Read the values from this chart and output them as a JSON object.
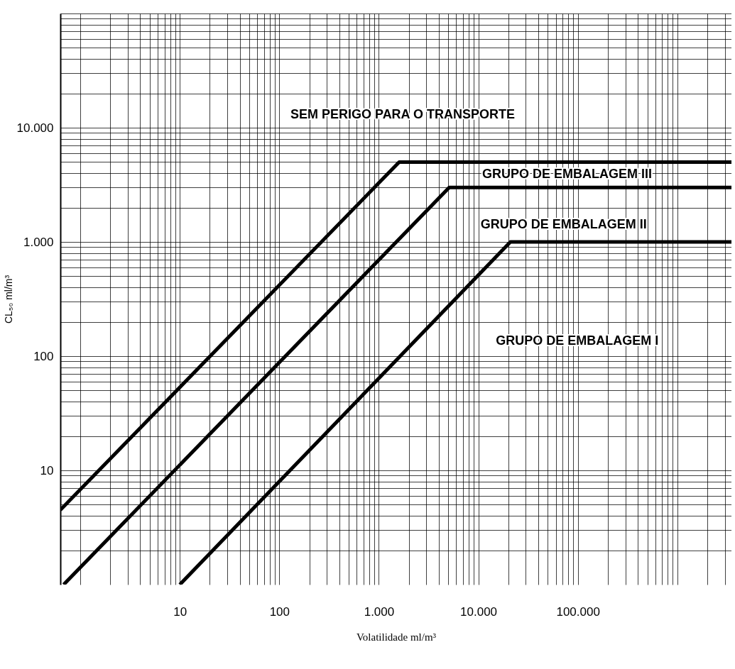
{
  "chart_data": {
    "type": "line",
    "xlabel": "Volatilidade ml/m³",
    "ylabel": "CL₅₀ ml/m³",
    "log": "xy",
    "grid": true,
    "legend": false,
    "line_style": "solid",
    "marker": "none",
    "xlim": [
      0.63,
      3500000
    ],
    "ylim": [
      1,
      100000
    ],
    "xticks": [
      {
        "value": 1,
        "label": null
      },
      {
        "value": 2,
        "label": null
      },
      {
        "value": 3,
        "label": null
      },
      {
        "value": 4,
        "label": null
      },
      {
        "value": 5,
        "label": null
      },
      {
        "value": 6,
        "label": null
      },
      {
        "value": 7,
        "label": null
      },
      {
        "value": 8,
        "label": null
      },
      {
        "value": 9,
        "label": null
      },
      10,
      {
        "value": 20,
        "label": null
      },
      {
        "value": 30,
        "label": null
      },
      {
        "value": 40,
        "label": null
      },
      {
        "value": 50,
        "label": null
      },
      {
        "value": 60,
        "label": null
      },
      {
        "value": 70,
        "label": null
      },
      {
        "value": 80,
        "label": null
      },
      {
        "value": 90,
        "label": null
      },
      100,
      {
        "value": 200,
        "label": null
      },
      {
        "value": 300,
        "label": null
      },
      {
        "value": 400,
        "label": null
      },
      {
        "value": 500,
        "label": null
      },
      {
        "value": 600,
        "label": null
      },
      {
        "value": 700,
        "label": null
      },
      {
        "value": 800,
        "label": null
      },
      {
        "value": 900,
        "label": null
      },
      {
        "value": 1000,
        "label": "1.000"
      },
      {
        "value": 2000,
        "label": null
      },
      {
        "value": 3000,
        "label": null
      },
      {
        "value": 4000,
        "label": null
      },
      {
        "value": 5000,
        "label": null
      },
      {
        "value": 6000,
        "label": null
      },
      {
        "value": 7000,
        "label": null
      },
      {
        "value": 8000,
        "label": null
      },
      {
        "value": 9000,
        "label": null
      },
      {
        "value": 10000,
        "label": "10.000"
      },
      {
        "value": 20000,
        "label": null
      },
      {
        "value": 30000,
        "label": null
      },
      {
        "value": 40000,
        "label": null
      },
      {
        "value": 50000,
        "label": null
      },
      {
        "value": 60000,
        "label": null
      },
      {
        "value": 70000,
        "label": null
      },
      {
        "value": 80000,
        "label": null
      },
      {
        "value": 90000,
        "label": null
      },
      {
        "value": 100000,
        "label": "100.000"
      },
      {
        "value": 200000,
        "label": null
      },
      {
        "value": 300000,
        "label": null
      },
      {
        "value": 400000,
        "label": null
      },
      {
        "value": 500000,
        "label": null
      },
      {
        "value": 600000,
        "label": null
      },
      {
        "value": 700000,
        "label": null
      },
      {
        "value": 800000,
        "label": null
      },
      {
        "value": 900000,
        "label": null
      },
      {
        "value": 1000000,
        "label": null
      },
      {
        "value": 2000000,
        "label": null
      },
      {
        "value": 3000000,
        "label": null
      }
    ],
    "yticks": [
      {
        "value": 2,
        "label": null
      },
      {
        "value": 3,
        "label": null
      },
      {
        "value": 4,
        "label": null
      },
      {
        "value": 5,
        "label": null
      },
      {
        "value": 6,
        "label": null
      },
      {
        "value": 7,
        "label": null
      },
      {
        "value": 8,
        "label": null
      },
      {
        "value": 9,
        "label": null
      },
      10,
      {
        "value": 20,
        "label": null
      },
      {
        "value": 30,
        "label": null
      },
      {
        "value": 40,
        "label": null
      },
      {
        "value": 50,
        "label": null
      },
      {
        "value": 60,
        "label": null
      },
      {
        "value": 70,
        "label": null
      },
      {
        "value": 80,
        "label": null
      },
      {
        "value": 90,
        "label": null
      },
      100,
      {
        "value": 200,
        "label": null
      },
      {
        "value": 300,
        "label": null
      },
      {
        "value": 400,
        "label": null
      },
      {
        "value": 500,
        "label": null
      },
      {
        "value": 600,
        "label": null
      },
      {
        "value": 700,
        "label": null
      },
      {
        "value": 800,
        "label": null
      },
      {
        "value": 900,
        "label": null
      },
      {
        "value": 1000,
        "label": "1.000"
      },
      {
        "value": 2000,
        "label": null
      },
      {
        "value": 3000,
        "label": null
      },
      {
        "value": 4000,
        "label": null
      },
      {
        "value": 5000,
        "label": null
      },
      {
        "value": 6000,
        "label": null
      },
      {
        "value": 7000,
        "label": null
      },
      {
        "value": 8000,
        "label": null
      },
      {
        "value": 9000,
        "label": null
      },
      {
        "value": 10000,
        "label": "10.000"
      },
      {
        "value": 20000,
        "label": null
      },
      {
        "value": 30000,
        "label": null
      },
      {
        "value": 40000,
        "label": null
      },
      {
        "value": 50000,
        "label": null
      },
      {
        "value": 60000,
        "label": null
      },
      {
        "value": 70000,
        "label": null
      },
      {
        "value": 80000,
        "label": null
      },
      {
        "value": 90000,
        "label": null
      },
      {
        "value": 100000,
        "label": null
      }
    ],
    "series": [
      {
        "color": "#000000",
        "x": [
          0.63,
          1600,
          3500000
        ],
        "values": [
          4.5,
          5000,
          5000
        ]
      },
      {
        "color": "#000000",
        "x": [
          0.68,
          5100,
          3500000
        ],
        "values": [
          1,
          3000,
          3000
        ]
      },
      {
        "color": "#000000",
        "x": [
          10,
          21000,
          3500000
        ],
        "values": [
          1,
          1000,
          1000
        ]
      }
    ],
    "annotations": [
      "SEM PERIGO PARA O TRANSPORTE",
      "GRUPO DE EMBALAGEM III",
      "GRUPO DE EMBALAGEM II",
      "GRUPO DE EMBALAGEM I"
    ]
  }
}
